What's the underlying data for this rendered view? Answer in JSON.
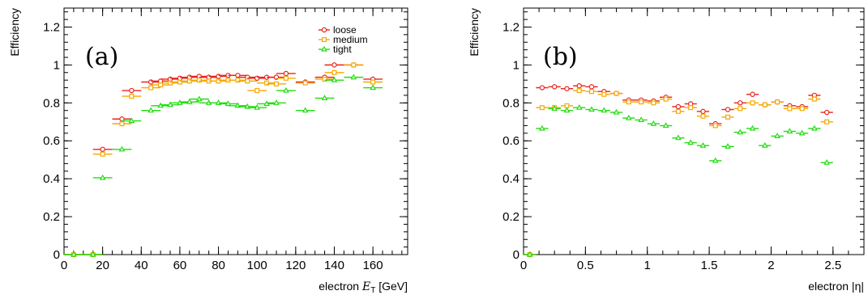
{
  "colors": {
    "loose": "#e8231e",
    "medium": "#f5a800",
    "tight": "#22dd11",
    "axis": "#000000"
  },
  "chart_data": [
    {
      "type": "scatter",
      "panel_label": "(a)",
      "xlabel_prefix": "electron ",
      "xlabel_symbol": "E",
      "xlabel_subscript": "T",
      "xlabel_suffix": " [GeV]",
      "ylabel": "Efficiency",
      "xlim": [
        0,
        178
      ],
      "ylim": [
        0,
        1.3
      ],
      "xticks": [
        0,
        20,
        40,
        60,
        80,
        100,
        120,
        140,
        160
      ],
      "xtick_labels": [
        "0",
        "20",
        "40",
        "60",
        "80",
        "100",
        "120",
        "140",
        "160"
      ],
      "yticks": [
        0,
        0.2,
        0.4,
        0.6,
        0.8,
        1,
        1.2
      ],
      "ytick_labels": [
        "0",
        "0.2",
        "0.4",
        "0.6",
        "0.8",
        "1",
        "1.2"
      ],
      "xerr": 5,
      "grid": false,
      "legend": {
        "position": "top-right",
        "entries": [
          "loose",
          "medium",
          "tight"
        ]
      },
      "x": [
        5,
        15,
        20,
        30,
        35,
        45,
        50,
        55,
        60,
        65,
        70,
        75,
        80,
        85,
        90,
        95,
        100,
        105,
        110,
        115,
        125,
        135,
        140,
        150,
        160
      ],
      "series": [
        {
          "name": "loose",
          "marker": "circle",
          "values": [
            0,
            0,
            0.555,
            0.715,
            0.865,
            0.91,
            0.915,
            0.925,
            0.93,
            0.935,
            0.94,
            0.935,
            0.94,
            0.945,
            0.945,
            0.935,
            0.93,
            0.935,
            0.935,
            0.955,
            0.91,
            0.935,
            1.0,
            1.0,
            0.925
          ]
        },
        {
          "name": "medium",
          "marker": "square",
          "values": [
            0,
            0,
            0.53,
            0.69,
            0.835,
            0.88,
            0.895,
            0.905,
            0.91,
            0.915,
            0.92,
            0.915,
            0.915,
            0.92,
            0.92,
            0.915,
            0.865,
            0.905,
            0.9,
            0.93,
            0.905,
            0.925,
            0.96,
            1.0,
            0.91
          ]
        },
        {
          "name": "tight",
          "marker": "triangle",
          "values": [
            0,
            0,
            0.405,
            0.555,
            0.705,
            0.76,
            0.785,
            0.79,
            0.8,
            0.805,
            0.82,
            0.8,
            0.8,
            0.795,
            0.785,
            0.78,
            0.775,
            0.795,
            0.8,
            0.865,
            0.76,
            0.825,
            0.92,
            0.935,
            0.88
          ]
        }
      ]
    },
    {
      "type": "scatter",
      "panel_label": "(b)",
      "xlabel": "electron |η|",
      "ylabel": "Efficiency",
      "xlim": [
        0,
        2.75
      ],
      "ylim": [
        0,
        1.3
      ],
      "xticks": [
        0,
        0.5,
        1,
        1.5,
        2,
        2.5
      ],
      "xtick_labels": [
        "0",
        "0.5",
        "1",
        "1.5",
        "2",
        "2.5"
      ],
      "yticks": [
        0,
        0.2,
        0.4,
        0.6,
        0.8,
        1,
        1.2
      ],
      "ytick_labels": [
        "0",
        "0.2",
        "0.4",
        "0.6",
        "0.8",
        "1",
        "1.2"
      ],
      "xerr": 0.05,
      "grid": false,
      "x": [
        0.05,
        0.15,
        0.25,
        0.35,
        0.45,
        0.55,
        0.65,
        0.75,
        0.85,
        0.95,
        1.05,
        1.15,
        1.25,
        1.35,
        1.45,
        1.55,
        1.65,
        1.75,
        1.85,
        1.95,
        2.05,
        2.15,
        2.25,
        2.35,
        2.45
      ],
      "series": [
        {
          "name": "loose",
          "marker": "circle",
          "values": [
            0,
            0.88,
            0.885,
            0.875,
            0.89,
            0.885,
            0.86,
            0.85,
            0.815,
            0.815,
            0.81,
            0.83,
            0.78,
            0.795,
            0.755,
            0.69,
            0.765,
            0.8,
            0.845,
            0.79,
            0.805,
            0.785,
            0.78,
            0.84,
            0.75
          ]
        },
        {
          "name": "medium",
          "marker": "square",
          "values": [
            0,
            0.775,
            0.775,
            0.785,
            0.865,
            0.86,
            0.845,
            0.85,
            0.805,
            0.805,
            0.8,
            0.82,
            0.755,
            0.775,
            0.73,
            0.68,
            0.725,
            0.77,
            0.8,
            0.79,
            0.805,
            0.77,
            0.77,
            0.82,
            0.7
          ]
        },
        {
          "name": "tight",
          "marker": "triangle",
          "values": [
            0,
            0.665,
            0.77,
            0.76,
            0.775,
            0.765,
            0.76,
            0.75,
            0.72,
            0.71,
            0.69,
            0.68,
            0.615,
            0.59,
            0.575,
            0.495,
            0.57,
            0.645,
            0.665,
            0.575,
            0.625,
            0.65,
            0.64,
            0.665,
            0.485
          ]
        }
      ]
    }
  ]
}
